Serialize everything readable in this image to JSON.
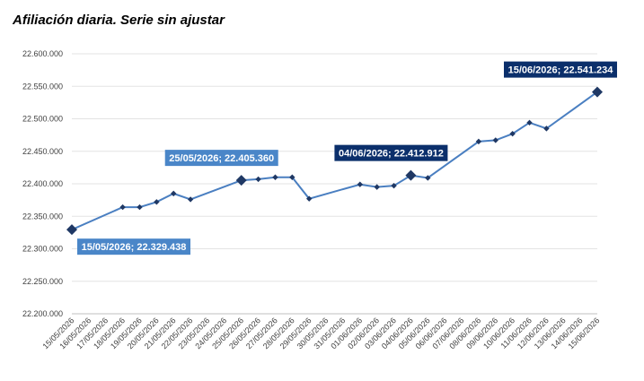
{
  "chart_data": {
    "type": "line",
    "title": "Afiliación diaria. Serie sin ajustar",
    "xlabel": "",
    "ylabel": "",
    "ylim": [
      22200000,
      22600000
    ],
    "yticks": [
      22200000,
      22250000,
      22300000,
      22350000,
      22400000,
      22450000,
      22500000,
      22550000,
      22600000
    ],
    "ytick_labels": [
      "22.200.000",
      "22.250.000",
      "22.300.000",
      "22.350.000",
      "22.400.000",
      "22.450.000",
      "22.500.000",
      "22.550.000",
      "22.600.000"
    ],
    "grid": true,
    "line_color": "#4a7fc1",
    "categories": [
      "15/05/2026",
      "16/05/2026",
      "17/05/2026",
      "18/05/2026",
      "19/05/2026",
      "20/05/2026",
      "21/05/2026",
      "22/05/2026",
      "23/05/2026",
      "24/05/2026",
      "25/05/2026",
      "26/05/2026",
      "27/05/2026",
      "28/05/2026",
      "29/05/2026",
      "30/05/2026",
      "31/05/2026",
      "01/06/2026",
      "02/06/2026",
      "03/06/2026",
      "04/06/2026",
      "05/06/2026",
      "06/06/2026",
      "07/06/2026",
      "08/06/2026",
      "09/06/2026",
      "10/06/2026",
      "11/06/2026",
      "12/06/2026",
      "13/06/2026",
      "14/06/2026",
      "15/06/2026"
    ],
    "values": [
      22329438,
      null,
      null,
      22364000,
      22364000,
      22372000,
      22385000,
      22376000,
      null,
      null,
      22405360,
      22407000,
      22410000,
      22410000,
      22377000,
      null,
      null,
      22399000,
      22395000,
      22397000,
      22412912,
      22409000,
      null,
      null,
      22465000,
      22467000,
      22477000,
      22494000,
      22485000,
      null,
      null,
      22541234
    ],
    "highlights": [
      {
        "index": 0,
        "label": "15/05/2026; 22.329.438",
        "bg": "#4a86c8"
      },
      {
        "index": 10,
        "label": "25/05/2026; 22.405.360",
        "bg": "#4a86c8"
      },
      {
        "index": 20,
        "label": "04/06/2026; 22.412.912",
        "bg": "#0b2f6b"
      },
      {
        "index": 31,
        "label": "15/06/2026; 22.541.234",
        "bg": "#0b2f6b"
      }
    ]
  }
}
